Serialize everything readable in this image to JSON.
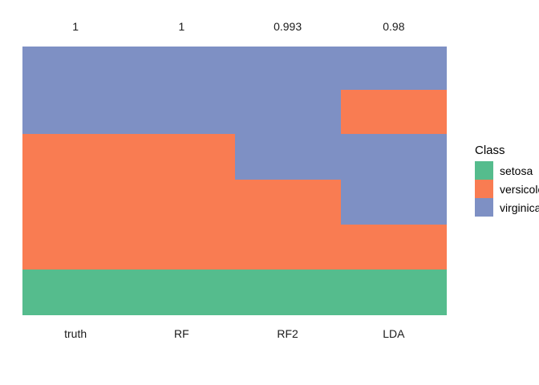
{
  "figure": {
    "background": "#ffffff",
    "text_color": "#1a1a1a"
  },
  "legend": {
    "title": "Class",
    "items": [
      {
        "label": "setosa",
        "color": "#55BC8D"
      },
      {
        "label": "versicolor",
        "color": "#F97C52"
      },
      {
        "label": "virginica",
        "color": "#7E90C4"
      }
    ]
  },
  "chart_data": {
    "type": "heatmap",
    "title": "",
    "xlabel": "",
    "ylabel": "",
    "grid": false,
    "legend_position": "right",
    "columns": [
      "truth",
      "RF",
      "RF2",
      "LDA"
    ],
    "column_accuracy_labels": [
      "1",
      "1",
      "0.993",
      "0.98"
    ],
    "classes": [
      "setosa",
      "versicolor",
      "virginica"
    ],
    "class_colors": {
      "setosa": "#55BC8D",
      "versicolor": "#F97C52",
      "virginica": "#7E90C4"
    },
    "column_segments": {
      "truth": [
        {
          "class": "virginica",
          "fraction": 0.326
        },
        {
          "class": "versicolor",
          "fraction": 0.504
        },
        {
          "class": "setosa",
          "fraction": 0.17
        }
      ],
      "RF": [
        {
          "class": "virginica",
          "fraction": 0.326
        },
        {
          "class": "versicolor",
          "fraction": 0.504
        },
        {
          "class": "setosa",
          "fraction": 0.17
        }
      ],
      "RF2": [
        {
          "class": "virginica",
          "fraction": 0.496
        },
        {
          "class": "versicolor",
          "fraction": 0.334
        },
        {
          "class": "setosa",
          "fraction": 0.17
        }
      ],
      "LDA": [
        {
          "class": "virginica",
          "fraction": 0.162
        },
        {
          "class": "versicolor",
          "fraction": 0.164
        },
        {
          "class": "virginica",
          "fraction": 0.338
        },
        {
          "class": "versicolor",
          "fraction": 0.166
        },
        {
          "class": "setosa",
          "fraction": 0.17
        }
      ]
    }
  }
}
